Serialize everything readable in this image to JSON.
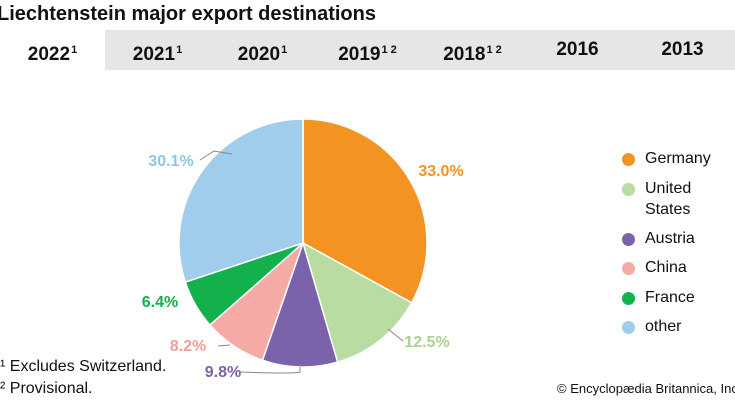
{
  "title": "Liechtenstein major export destinations",
  "tabs": [
    {
      "label": "2022",
      "sup": "1",
      "active": true
    },
    {
      "label": "2021",
      "sup": "1",
      "active": false
    },
    {
      "label": "2020",
      "sup": "1",
      "active": false
    },
    {
      "label": "2019",
      "sup": "1 2",
      "active": false
    },
    {
      "label": "2018",
      "sup": "1 2",
      "active": false
    },
    {
      "label": "2016",
      "sup": "",
      "active": false
    },
    {
      "label": "2013",
      "sup": "",
      "active": false
    }
  ],
  "chart_data": {
    "type": "pie",
    "categories": [
      "Germany",
      "United States",
      "Austria",
      "China",
      "France",
      "other"
    ],
    "values": [
      33.0,
      12.5,
      9.8,
      8.2,
      6.4,
      30.1
    ],
    "labels": [
      "33.0%",
      "12.5%",
      "9.8%",
      "8.2%",
      "6.4%",
      "30.1%"
    ],
    "colors": [
      "#f39321",
      "#b8dca2",
      "#7b63ab",
      "#f5aaa6",
      "#12b14b",
      "#9fcdeb"
    ],
    "label_colors": [
      "#f39321",
      "#a9d38f",
      "#7b63ab",
      "#ee9f99",
      "#12b14b",
      "#8fc6e6"
    ],
    "legend_position": "right"
  },
  "legend": [
    {
      "label": "Germany",
      "color": "#f39321"
    },
    {
      "label": "United States",
      "color": "#b8dca2"
    },
    {
      "label": "Austria",
      "color": "#7b63ab"
    },
    {
      "label": "China",
      "color": "#f5aaa6"
    },
    {
      "label": "France",
      "color": "#12b14b"
    },
    {
      "label": "other",
      "color": "#9fcdeb"
    }
  ],
  "notes": [
    "Excludes Switzerland.",
    "Provisional."
  ],
  "credit": "© Encyclopædia Britannica, Inc."
}
